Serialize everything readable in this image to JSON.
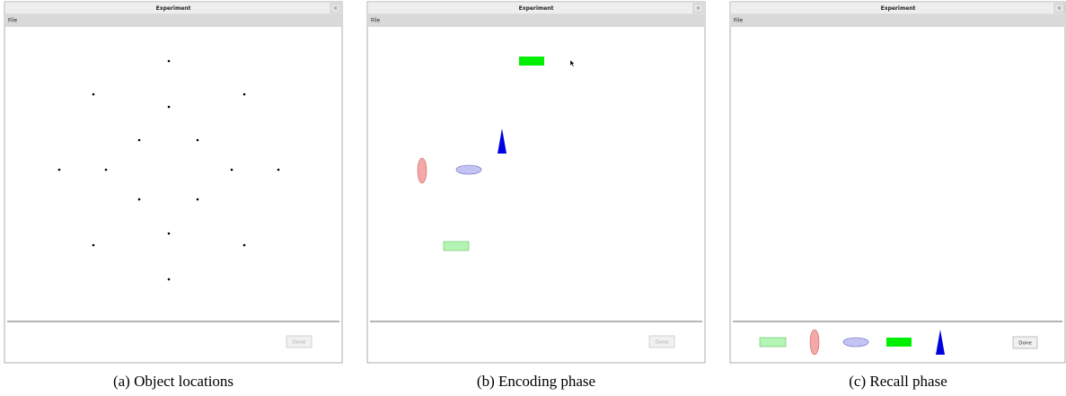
{
  "panels": [
    {
      "window_title": "Experiment",
      "menu": "File",
      "button": "Done",
      "caption": "(a) Object locations"
    },
    {
      "window_title": "Experiment",
      "menu": "File",
      "button": "Done",
      "caption": "(b) Encoding phase"
    },
    {
      "window_title": "Experiment",
      "menu": "File",
      "button": "Done",
      "caption": "(c) Recall phase"
    }
  ]
}
